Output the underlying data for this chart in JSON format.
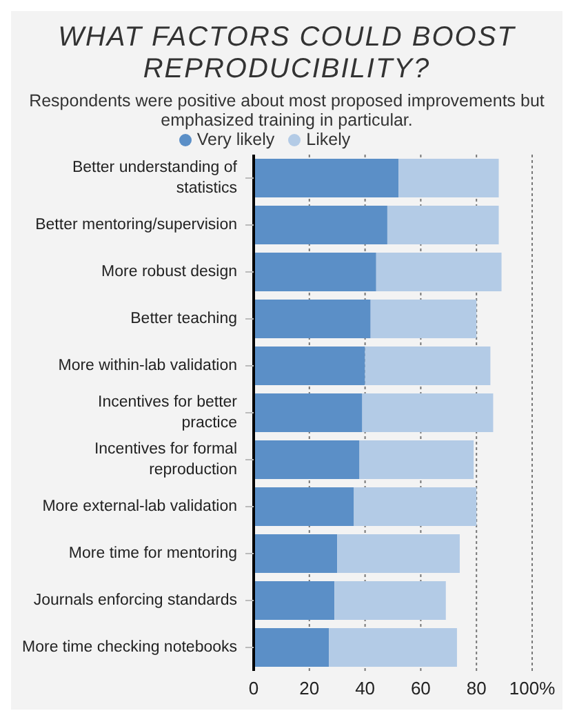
{
  "chart_data": {
    "type": "bar",
    "orientation": "horizontal",
    "stacked": true,
    "title": "WHAT FACTORS COULD BOOST REPRODUCIBILITY?",
    "subtitle": "Respondents were positive about most proposed improvements but emphasized training in particular.",
    "categories": [
      "Better understanding of statistics",
      "Better mentoring/supervision",
      "More robust design",
      "Better teaching",
      "More within-lab validation",
      "Incentives for better practice",
      "Incentives for formal reproduction",
      "More external-lab validation",
      "More time for mentoring",
      "Journals enforcing standards",
      "More time checking notebooks"
    ],
    "series": [
      {
        "name": "Very likely",
        "color": "#5b8fc7",
        "values": [
          52,
          48,
          44,
          42,
          40,
          39,
          38,
          36,
          30,
          29,
          27
        ]
      },
      {
        "name": "Likely",
        "color": "#b3cbe6",
        "values": [
          36,
          40,
          45,
          38,
          45,
          47,
          41,
          44,
          44,
          40,
          46
        ]
      }
    ],
    "xlim": [
      0,
      100
    ],
    "xticks": [
      0,
      20,
      40,
      60,
      80,
      {
        "value": 100,
        "label": "100%"
      }
    ],
    "grid": "x",
    "legend": "top"
  }
}
